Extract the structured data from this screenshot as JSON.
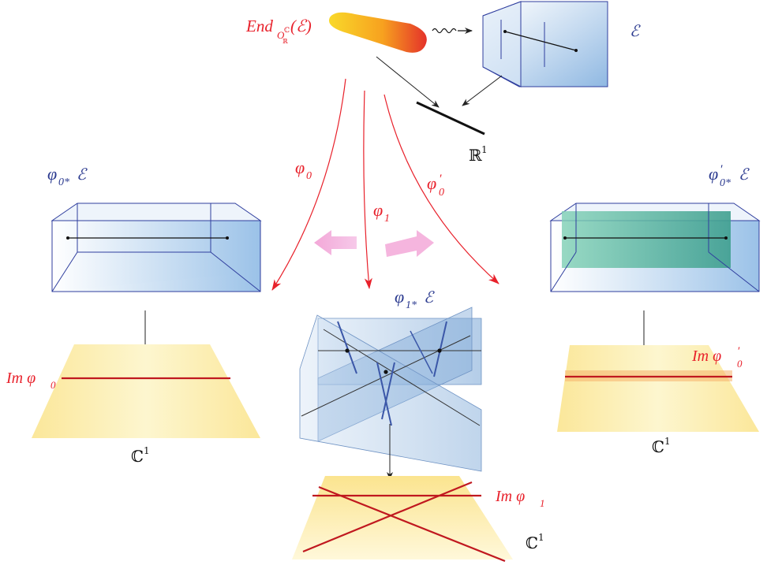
{
  "labels": {
    "end_main": "End",
    "end_sub": "O",
    "end_subsub": "ℝ",
    "end_sup": "ℂ",
    "end_arg": "(ℰ)",
    "e_top": "ℰ",
    "r1": "ℝ",
    "r1_sup": "1",
    "phi0": "φ",
    "phi0_sub": "0",
    "phi1": "φ",
    "phi1_sub": "1",
    "phi0p": "φ",
    "phi0p_prime": "′",
    "phi0p_sub": "0",
    "left_box": "φ",
    "left_box_sub": "0*",
    "left_box_e": "ℰ",
    "right_box": "φ",
    "right_box_prime": "′",
    "right_box_sub": "0*",
    "right_box_e": "ℰ",
    "center_box": "φ",
    "center_box_sub": "1*",
    "center_box_e": "ℰ",
    "im_phi0": "Im φ",
    "im_phi0_sub": "0",
    "im_phi1": "Im φ",
    "im_phi1_sub": "1",
    "im_phi0p": "Im φ",
    "im_phi0p_prime": "′",
    "im_phi0p_sub": "0",
    "c1_left": "ℂ",
    "c1_left_sup": "1",
    "c1_center": "ℂ",
    "c1_center_sup": "1",
    "c1_right": "ℂ",
    "c1_right_sup": "1"
  },
  "colors": {
    "red": "#e8212b",
    "blue": "#2b3a8f",
    "box_edge": "#2f3e9e",
    "box_fill": "#9ec3e6",
    "plane_fill": "#fbeaa0",
    "dark_red": "#c0181f"
  }
}
